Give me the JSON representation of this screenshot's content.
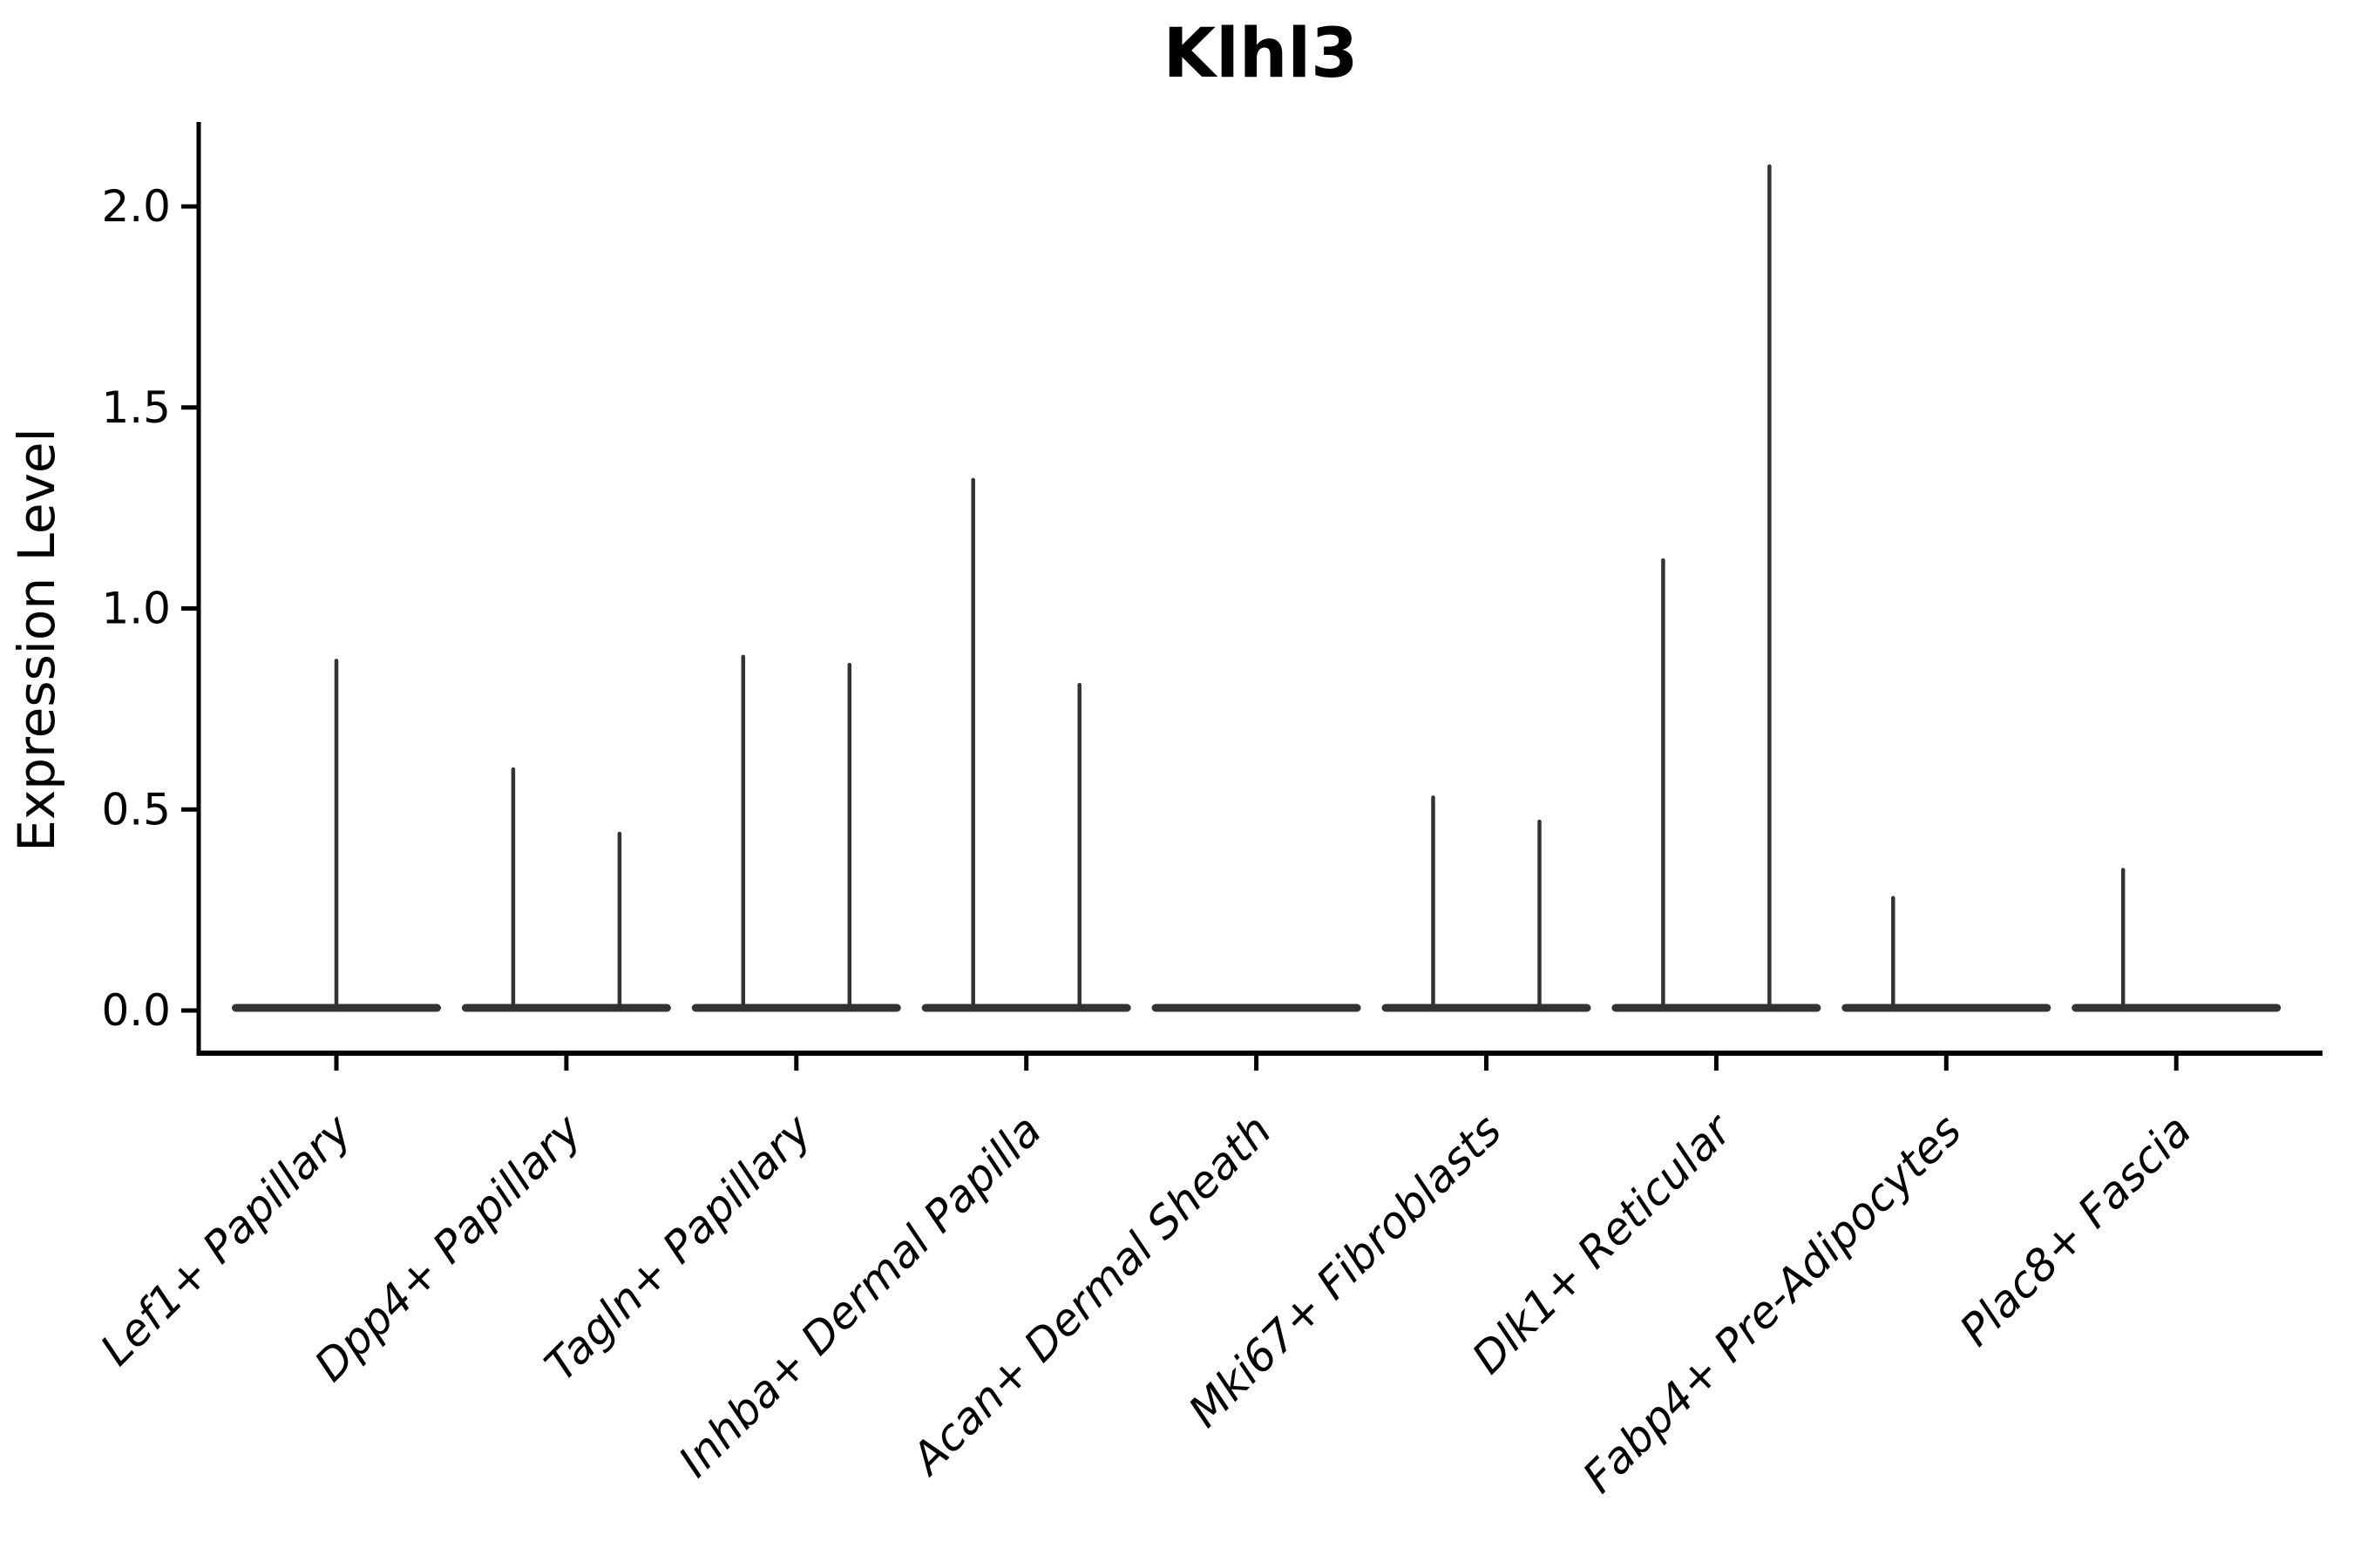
{
  "figure": {
    "background_color": "#ffffff"
  },
  "chart_data": {
    "type": "violin",
    "title": "Klhl3",
    "ylabel": "Expression Level",
    "xlabel": "",
    "grid": false,
    "legend": "none",
    "ylim": [
      -0.11,
      2.21
    ],
    "y_ticks": [
      {
        "label": "0.0",
        "value": 0.0
      },
      {
        "label": "0.5",
        "value": 0.5
      },
      {
        "label": "1.0",
        "value": 1.0
      },
      {
        "label": "1.5",
        "value": 1.5
      },
      {
        "label": "2.0",
        "value": 2.0
      }
    ],
    "categories": [
      "Lef1+ Papillary",
      "Dpp4+ Papillary",
      "Tagln+ Papillary",
      "Inhba+ Dermal Papilla",
      "Acan+ Dermal Sheath",
      "Mki67+ Fibroblasts",
      "Dlk1+ Reticular",
      "Fabp4+ Pre-Adipocytes",
      "Plac8+ Fascia"
    ],
    "violins": [
      {
        "category": "Lef1+ Papillary",
        "baseline_value": 0.0,
        "spikes": [
          {
            "slot": "center",
            "max": 0.87
          }
        ]
      },
      {
        "category": "Dpp4+ Papillary",
        "baseline_value": 0.0,
        "spikes": [
          {
            "slot": "left",
            "max": 0.6
          },
          {
            "slot": "right",
            "max": 0.44
          }
        ]
      },
      {
        "category": "Tagln+ Papillary",
        "baseline_value": 0.0,
        "spikes": [
          {
            "slot": "left",
            "max": 0.88
          },
          {
            "slot": "right",
            "max": 0.86
          }
        ]
      },
      {
        "category": "Inhba+ Dermal Papilla",
        "baseline_value": 0.0,
        "spikes": [
          {
            "slot": "left",
            "max": 1.32
          },
          {
            "slot": "right",
            "max": 0.81
          }
        ]
      },
      {
        "category": "Acan+ Dermal Sheath",
        "baseline_value": 0.0,
        "spikes": []
      },
      {
        "category": "Mki67+ Fibroblasts",
        "baseline_value": 0.0,
        "spikes": [
          {
            "slot": "left",
            "max": 0.53
          },
          {
            "slot": "right",
            "max": 0.47
          }
        ]
      },
      {
        "category": "Dlk1+ Reticular",
        "baseline_value": 0.0,
        "spikes": [
          {
            "slot": "left",
            "max": 1.12
          },
          {
            "slot": "right",
            "max": 2.1
          }
        ]
      },
      {
        "category": "Fabp4+ Pre-Adipocytes",
        "baseline_value": 0.0,
        "spikes": [
          {
            "slot": "left",
            "max": 0.28
          }
        ]
      },
      {
        "category": "Plac8+ Fascia",
        "baseline_value": 0.0,
        "spikes": [
          {
            "slot": "left",
            "max": 0.35
          }
        ]
      }
    ],
    "colors": {
      "violin": "#333333",
      "axis": "#000000",
      "text": "#000000",
      "background": "#ffffff"
    }
  }
}
